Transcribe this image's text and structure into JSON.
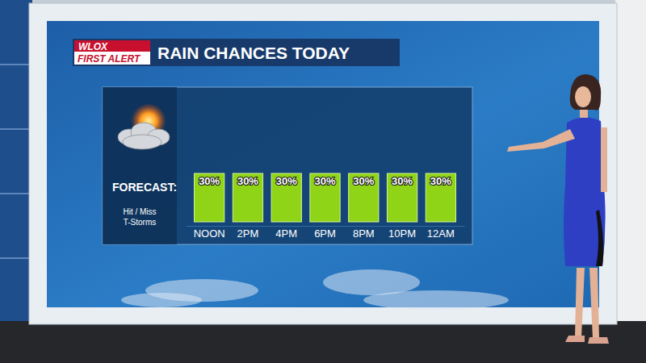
{
  "branding": {
    "station": "WLOX",
    "tag": "FIRST ALERT"
  },
  "chart_data": {
    "type": "bar",
    "title": "RAIN CHANCES TODAY",
    "annotations": [
      "FORECAST:",
      "Hit / Miss T-Storms"
    ],
    "categories": [
      "NOON",
      "2PM",
      "4PM",
      "6PM",
      "8PM",
      "10PM",
      "12AM"
    ],
    "values": [
      30,
      30,
      30,
      30,
      30,
      30,
      30
    ],
    "value_labels": [
      "30%",
      "30%",
      "30%",
      "30%",
      "30%",
      "30%",
      "30%"
    ],
    "color": "#8fd416",
    "data_labels": true,
    "tick_labels": "x",
    "grid": false
  }
}
